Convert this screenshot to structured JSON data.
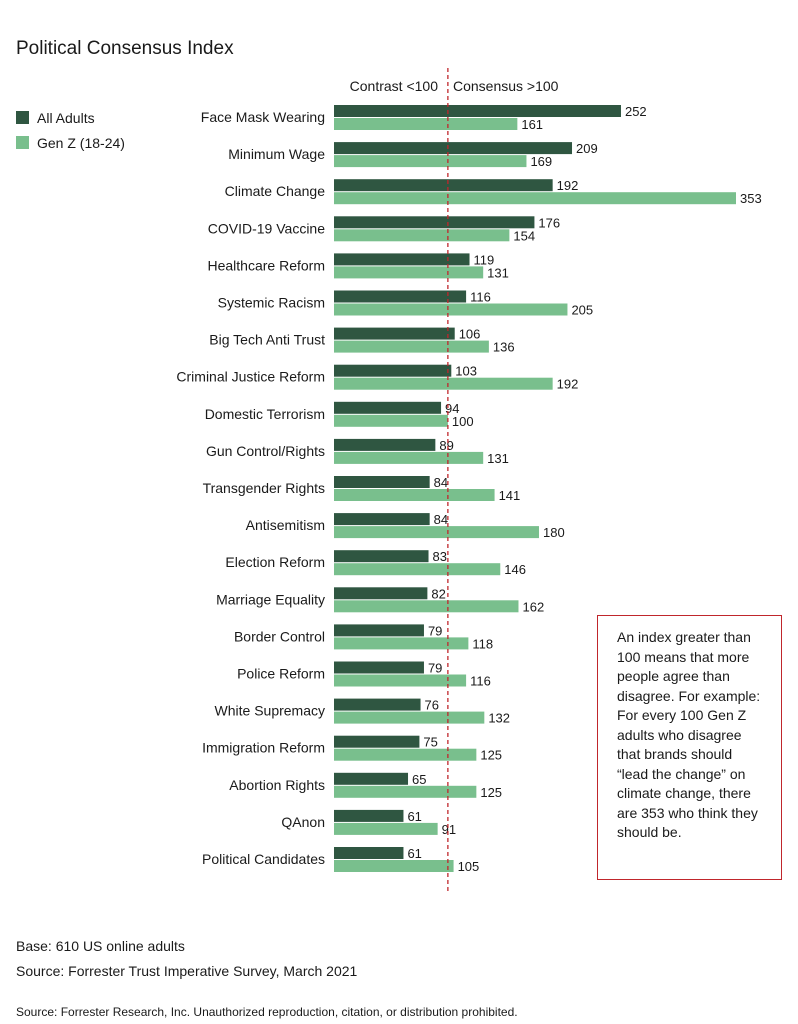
{
  "chart_data": {
    "type": "bar",
    "orientation": "horizontal",
    "title": "Political Consensus Index",
    "categories": [
      "Face Mask Wearing",
      "Minimum Wage",
      "Climate Change",
      "COVID-19 Vaccine",
      "Healthcare Reform",
      "Systemic Racism",
      "Big Tech Anti Trust",
      "Criminal Justice Reform",
      "Domestic Terrorism",
      "Gun Control/Rights",
      "Transgender Rights",
      "Antisemitism",
      "Election Reform",
      "Marriage Equality",
      "Border Control",
      "Police Reform",
      "White Supremacy",
      "Immigration Reform",
      "Abortion Rights",
      "QAnon",
      "Political Candidates"
    ],
    "series": [
      {
        "name": "All Adults",
        "color": "#2f5641",
        "values": [
          252,
          209,
          192,
          176,
          119,
          116,
          106,
          103,
          94,
          89,
          84,
          84,
          83,
          82,
          79,
          79,
          76,
          75,
          65,
          61,
          61
        ]
      },
      {
        "name": "Gen Z (18-24)",
        "color": "#79bf8d",
        "values": [
          161,
          169,
          353,
          154,
          131,
          205,
          136,
          192,
          100,
          131,
          141,
          180,
          146,
          162,
          118,
          116,
          132,
          125,
          125,
          91,
          105
        ]
      }
    ],
    "reference_value": 100,
    "reference_color": "#c0262c",
    "contrast_label": "Contrast <100",
    "consensus_label": "Consensus >100",
    "xlim": [
      0,
      353
    ],
    "legend_position": "top-left"
  },
  "note": {
    "lines": [
      "An index greater than",
      "100 means that more",
      "people agree than",
      "disagree. For example:",
      "For every 100 Gen Z",
      "adults who disagree",
      "that brands should",
      "“lead the change” on",
      "climate change, there",
      "are 353 who think they",
      "should be."
    ]
  },
  "footer": {
    "base": "Base: 610 US online adults",
    "source": "Source: Forrester Trust Imperative Survey, March 2021",
    "copyright": "Source: Forrester Research, Inc. Unauthorized reproduction, citation, or distribution prohibited."
  }
}
